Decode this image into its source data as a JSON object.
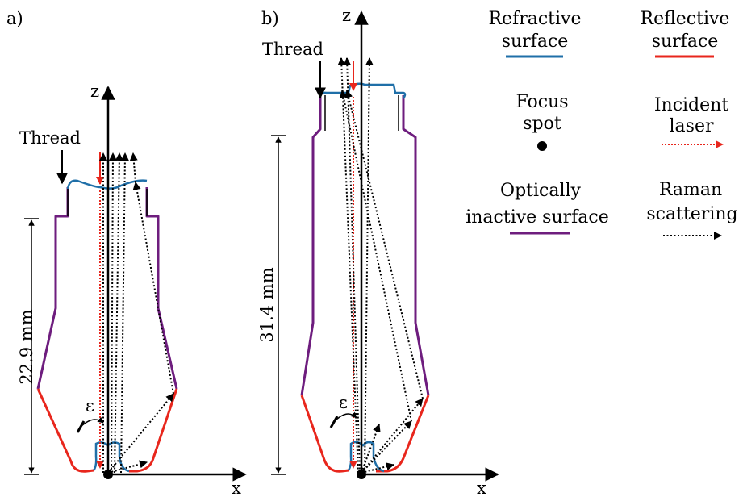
{
  "panels": [
    {
      "id": "a",
      "label": "a)",
      "axis_z": "z",
      "axis_x": "x",
      "thread": "Thread",
      "dimension": "22.9 mm",
      "angle": "ε"
    },
    {
      "id": "b",
      "label": "b)",
      "axis_z": "z",
      "axis_x": "x",
      "thread": "Thread",
      "dimension": "31.4 mm",
      "angle": "ε"
    }
  ],
  "legend": {
    "refractive": {
      "line1": "Refractive",
      "line2": "surface",
      "color": "#1f6fa8"
    },
    "reflective": {
      "line1": "Reflective",
      "line2": "surface",
      "color": "#e8261c"
    },
    "focus": {
      "line1": "Focus",
      "line2": "spot"
    },
    "incident": {
      "line1": "Incident",
      "line2": "laser",
      "color": "#e8261c"
    },
    "inactive": {
      "line1": "Optically",
      "line2": "inactive surface",
      "color": "#6e1d7e"
    },
    "raman": {
      "line1": "Raman",
      "line2": "scattering"
    }
  }
}
